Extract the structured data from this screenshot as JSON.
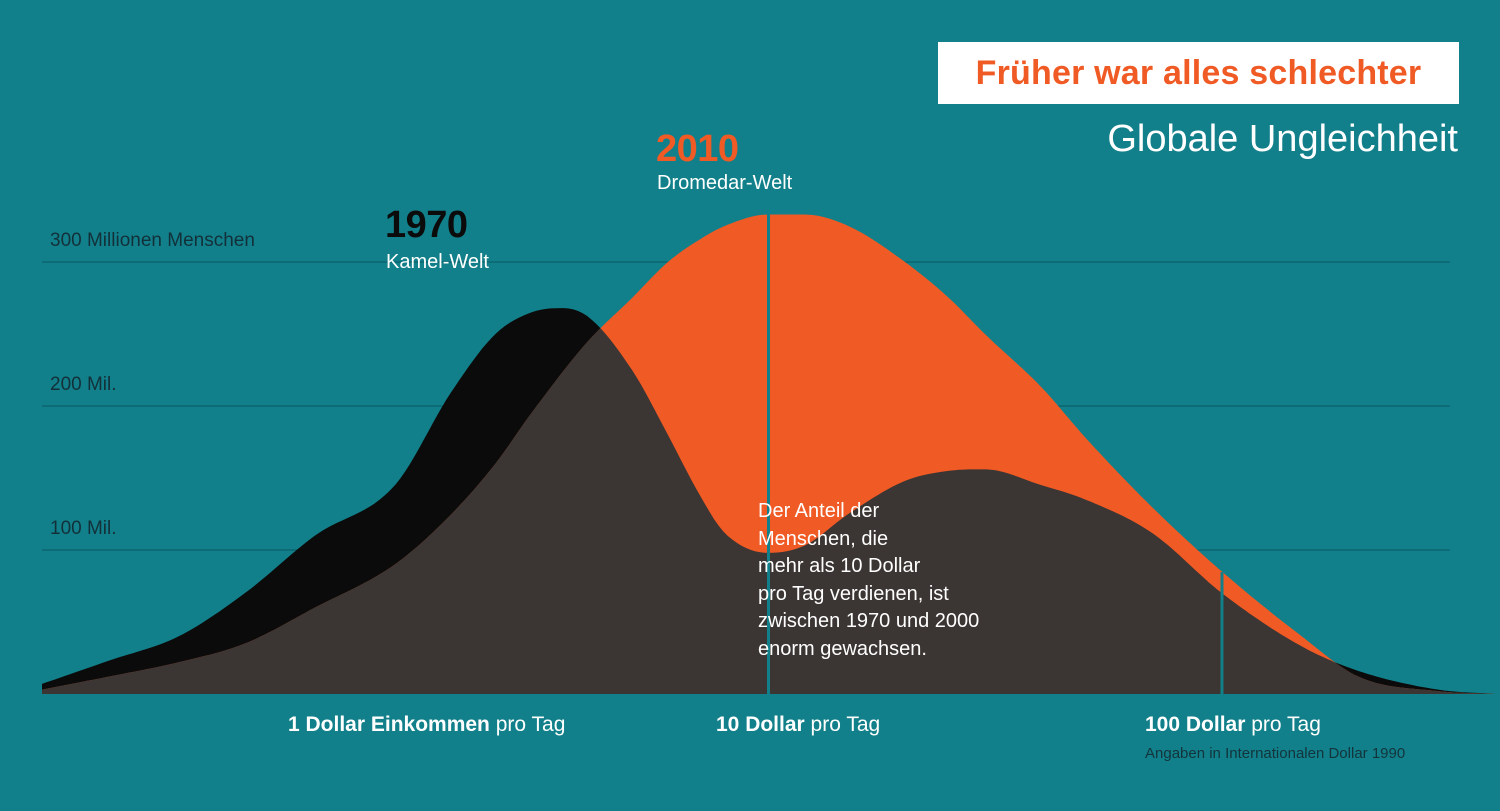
{
  "title": "Früher war alles schlechter",
  "subtitle": "Globale Ungleichheit",
  "colors": {
    "background": "#12808a",
    "series_1970": "#0b0b0b",
    "series_2010": "#f05a24",
    "overlap": "#3b3533",
    "title_accent": "#f05a24"
  },
  "y_ticks": {
    "t300": "300 Millionen Menschen",
    "t200": "200 Mil.",
    "t100": "100 Mil."
  },
  "labels_1970": {
    "year": "1970",
    "name": "Kamel-Welt"
  },
  "labels_2010": {
    "year": "2010",
    "name": "Dromedar-Welt"
  },
  "annotation": "Der Anteil der\nMenschen, die\nmehr als 10 Dollar\npro Tag verdienen, ist\nzwischen 1970 und 2000\nenorm gewachsen.",
  "x_labels": {
    "x1_bold": "1 Dollar Einkommen",
    "x1_rest": " pro Tag",
    "x10_bold": "10 Dollar",
    "x10_rest": " pro Tag",
    "x100_bold": "100 Dollar",
    "x100_rest": " pro Tag"
  },
  "footnote": "Angaben in Internationalen Dollar 1990",
  "chart_data": {
    "type": "area",
    "title": "Früher war alles schlechter",
    "subtitle": "Globale Ungleichheit",
    "x_scale": "log",
    "x_unit": "Dollar pro Tag",
    "xlim": [
      0.25,
      400
    ],
    "ylim": [
      0,
      330
    ],
    "y_unit": "Millionen Menschen",
    "grid": true,
    "x_ticks": [
      1,
      10,
      100
    ],
    "y_ticks": [
      100,
      200,
      300
    ],
    "series": [
      {
        "name": "1970",
        "x": [
          0.25,
          0.35,
          0.5,
          0.7,
          1.0,
          1.5,
          2.0,
          2.5,
          3.0,
          3.5,
          4.0,
          5.0,
          6.0,
          7.0,
          8.0,
          10,
          12,
          15,
          20,
          25,
          30,
          40,
          50,
          70,
          100,
          150,
          200,
          300,
          400
        ],
        "values": [
          7,
          23,
          40,
          70,
          110,
          145,
          210,
          250,
          265,
          268,
          262,
          225,
          180,
          140,
          112,
          98,
          103,
          125,
          148,
          155,
          156,
          145,
          135,
          112,
          70,
          33,
          16,
          3,
          0
        ]
      },
      {
        "name": "2010",
        "x": [
          0.25,
          0.35,
          0.5,
          0.7,
          1.0,
          1.5,
          2.0,
          2.5,
          3.0,
          4.0,
          5.0,
          6.0,
          7.0,
          8.0,
          10,
          12,
          15,
          20,
          25,
          30,
          40,
          50,
          70,
          100,
          150,
          200,
          300,
          400
        ],
        "values": [
          3,
          12,
          22,
          35,
          60,
          90,
          125,
          160,
          195,
          245,
          275,
          300,
          315,
          325,
          333,
          333,
          325,
          300,
          275,
          250,
          213,
          178,
          130,
          85,
          40,
          12,
          2,
          0
        ]
      }
    ]
  }
}
